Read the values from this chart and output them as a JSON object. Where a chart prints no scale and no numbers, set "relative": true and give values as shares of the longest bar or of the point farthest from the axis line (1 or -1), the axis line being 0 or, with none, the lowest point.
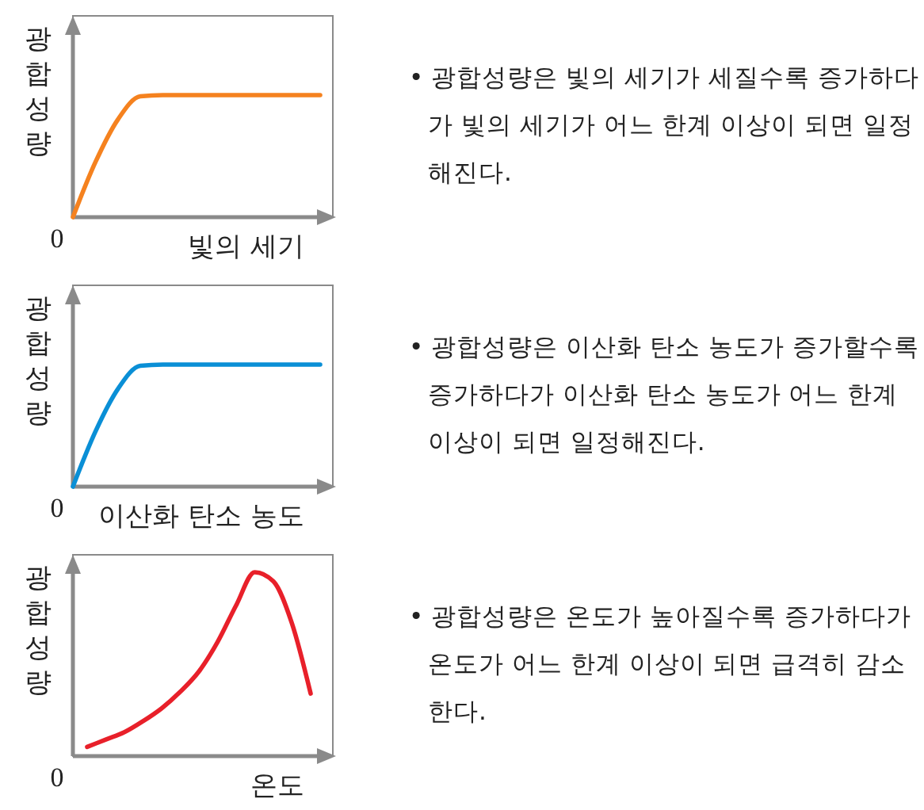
{
  "chart_data": [
    {
      "type": "line",
      "relative": true,
      "ylabel": "광합성량",
      "xlabel": "빛의 세기",
      "categories": [
        null,
        null,
        null,
        null,
        null,
        null,
        null,
        null,
        null,
        null,
        null,
        null
      ],
      "series": [
        {
          "color": "#f5821f",
          "values": [
            0,
            0.45,
            0.8,
            0.99,
            1,
            1,
            1,
            1,
            1,
            1,
            1,
            1
          ]
        }
      ],
      "annotations": [
        "0",
        "• 광합성량은 빛의 세기가 세질수록 증가하다가 빛의 세기가 어느 한계 이상이 되면 일정해진다."
      ]
    },
    {
      "type": "line",
      "relative": true,
      "ylabel": "광합성량",
      "xlabel": "이산화 탄소 농도",
      "categories": [
        null,
        null,
        null,
        null,
        null,
        null,
        null,
        null,
        null,
        null,
        null,
        null
      ],
      "series": [
        {
          "color": "#0a8fd6",
          "values": [
            0,
            0.45,
            0.8,
            0.99,
            1,
            1,
            1,
            1,
            1,
            1,
            1,
            1
          ]
        }
      ],
      "annotations": [
        "0",
        "• 광합성량은 이산화 탄소 농도가 증가할수록 증가하다가 이산화 탄소 농도가 어느 한계 이상이 되면 일정해진다."
      ]
    },
    {
      "type": "line",
      "relative": true,
      "ylabel": "광합성량",
      "xlabel": "온도",
      "categories": [
        null,
        null,
        null,
        null,
        null,
        null,
        null,
        null,
        null,
        null,
        null,
        null,
        null
      ],
      "series": [
        {
          "color": "#e8202a",
          "values": [
            0.05,
            0.09,
            0.13,
            0.19,
            0.26,
            0.35,
            0.46,
            0.62,
            0.82,
            1,
            0.95,
            0.72,
            0.34
          ]
        }
      ],
      "annotations": [
        "0",
        "• 광합성량은 온도가 높아질수록 증가하다가 온도가 어느 한계 이상이 되면 급격히 감소한다."
      ]
    }
  ]
}
